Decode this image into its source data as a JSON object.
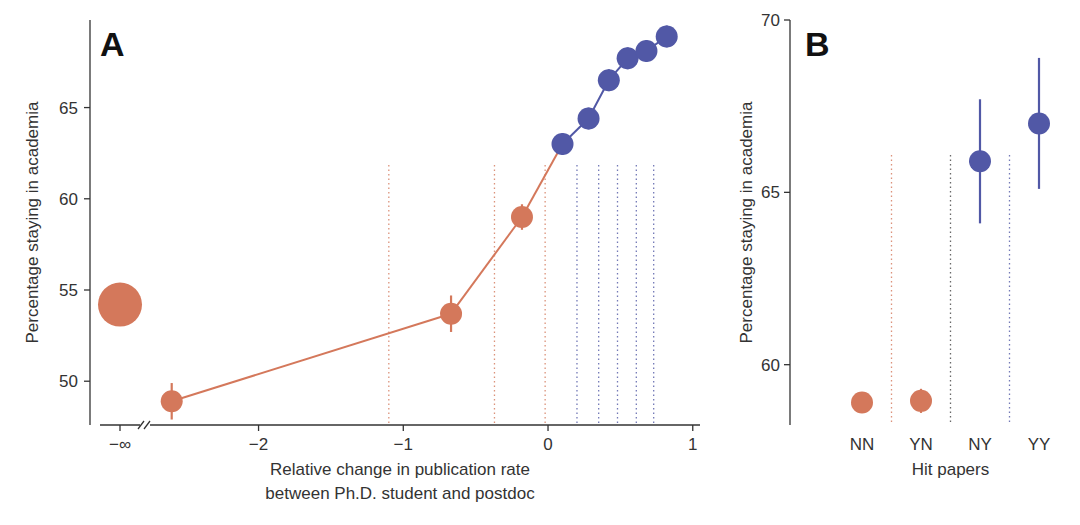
{
  "chart_data": [
    {
      "type": "scatter",
      "title": "A",
      "xlabel": [
        "Relative change in publication rate",
        "between Ph.D. student and postdoc"
      ],
      "ylabel": "Percentage staying in academia",
      "x": [
        -2.6,
        -0.67,
        -0.18,
        0.1,
        0.28,
        0.42,
        0.55,
        0.68,
        0.82
      ],
      "values": [
        48.9,
        53.7,
        59.0,
        63.0,
        64.4,
        66.5,
        67.7,
        68.1,
        68.9
      ],
      "errors": [
        1.0,
        1.0,
        0.7,
        0.6,
        0.6,
        0.6,
        0.6,
        0.6,
        0.6
      ],
      "colors": [
        "#d4785b",
        "#d4785b",
        "#d4785b",
        "#5158a6",
        "#5158a6",
        "#5158a6",
        "#5158a6",
        "#5158a6",
        "#5158a6"
      ],
      "marker": "circle",
      "line_style": "solid",
      "neg_inf": {
        "label": "−∞",
        "value": 54.2,
        "error": 0.3,
        "color": "#d4785b"
      },
      "bin_edges": [
        -1.1,
        -0.37,
        -0.02,
        0.2,
        0.35,
        0.48,
        0.61,
        0.73
      ],
      "xlim": [
        -2.75,
        1.05
      ],
      "ylim": [
        47.6,
        69.8
      ],
      "xticks": [
        {
          "value": -2,
          "label": "−2"
        },
        {
          "value": -1,
          "label": "−1"
        },
        0,
        1
      ],
      "yticks": [
        50,
        55,
        60,
        65
      ]
    },
    {
      "type": "scatter",
      "title": "B",
      "xlabel": "Hit papers",
      "ylabel": "Percentage staying in academia",
      "categories": [
        "NN",
        "YN",
        "NY",
        "YY"
      ],
      "values": [
        58.9,
        58.95,
        65.9,
        67.0
      ],
      "errors": [
        0.1,
        0.35,
        1.8,
        1.9
      ],
      "colors": [
        "#d4785b",
        "#d4785b",
        "#5158a6",
        "#5158a6"
      ],
      "marker": "circle",
      "ylim": [
        58.25,
        70
      ],
      "yticks": [
        60,
        65,
        70
      ]
    }
  ]
}
